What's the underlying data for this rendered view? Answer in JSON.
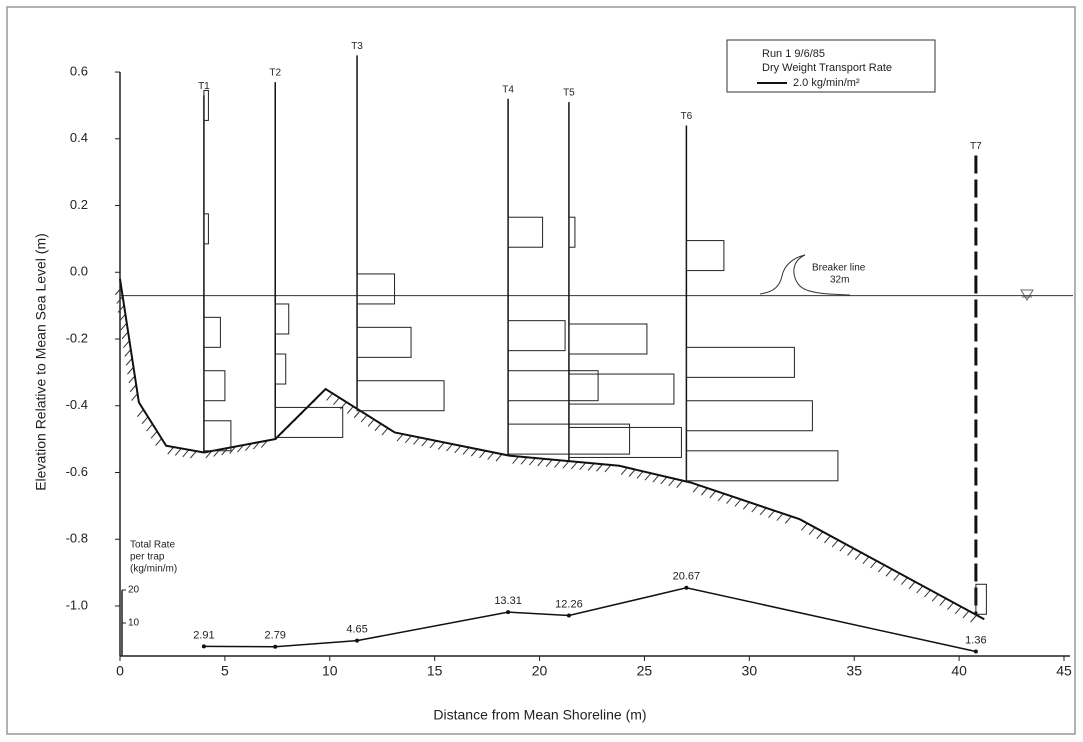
{
  "chart_data": {
    "type": "profile",
    "xlabel": "Distance from Mean Shoreline  (m)",
    "ylabel": "Elevation Relative to Mean Sea Level  (m)",
    "xlim": [
      0,
      45
    ],
    "xticks": [
      0,
      5,
      10,
      15,
      20,
      25,
      30,
      35,
      40,
      45
    ],
    "ylim": [
      -1.15,
      0.75
    ],
    "yticks": [
      0.6,
      0.4,
      0.2,
      {
        "value": 0,
        "label": "0.0"
      },
      -0.2,
      -0.4,
      -0.6,
      -0.8,
      {
        "value": -1,
        "label": "-1.0"
      }
    ],
    "legend": {
      "title": "Run 1  9/6/85",
      "subtitle": "Dry Weight Transport Rate",
      "label": "2.0 kg/min/m²",
      "value": 2.0
    },
    "sea_level": -0.07,
    "breaker": {
      "label": "Breaker line",
      "distance_label": "32m"
    },
    "profile": {
      "x": [
        0,
        0.9,
        2.2,
        4.0,
        7.4,
        9.8,
        13.1,
        18.6,
        23.8,
        27.2,
        32.4,
        41.2
      ],
      "y": [
        -0.02,
        -0.39,
        -0.52,
        -0.54,
        -0.5,
        -0.35,
        -0.48,
        -0.55,
        -0.58,
        -0.63,
        -0.74,
        -1.04
      ]
    },
    "traps": [
      {
        "name": "T1",
        "x": 4.0,
        "top": 0.53,
        "elevations": [
          0.5,
          0.13,
          -0.18,
          -0.34,
          -0.49
        ],
        "rates": [
          0.3,
          0.3,
          1.1,
          1.4,
          1.8
        ]
      },
      {
        "name": "T2",
        "x": 7.4,
        "top": 0.57,
        "elevations": [
          -0.14,
          -0.29,
          -0.45
        ],
        "rates": [
          0.9,
          0.7,
          4.5
        ]
      },
      {
        "name": "T3",
        "x": 11.3,
        "top": 0.65,
        "elevations": [
          -0.05,
          -0.21,
          -0.37
        ],
        "rates": [
          2.5,
          3.6,
          5.8
        ]
      },
      {
        "name": "T4",
        "x": 18.5,
        "top": 0.52,
        "elevations": [
          0.12,
          -0.19,
          -0.34,
          -0.5
        ],
        "rates": [
          2.3,
          3.8,
          6.0,
          8.1
        ]
      },
      {
        "name": "T5",
        "x": 21.4,
        "top": 0.51,
        "elevations": [
          0.12,
          -0.2,
          -0.35,
          -0.51
        ],
        "rates": [
          0.4,
          5.2,
          7.0,
          7.5
        ]
      },
      {
        "name": "T6",
        "x": 27.0,
        "top": 0.44,
        "elevations": [
          0.05,
          -0.27,
          -0.43,
          -0.58
        ],
        "rates": [
          2.5,
          7.2,
          8.4,
          10.1
        ]
      },
      {
        "name": "T7",
        "x": 40.8,
        "top": 0.35,
        "elevations": [
          -0.98
        ],
        "rates": [
          0.7
        ]
      }
    ],
    "total_rate": {
      "label": [
        "Total Rate",
        "per trap",
        "(kg/min/m)"
      ],
      "ylim": [
        0,
        20
      ],
      "yticks": [
        10,
        20
      ],
      "x": [
        4.0,
        7.4,
        11.3,
        18.5,
        21.4,
        27.0,
        40.8
      ],
      "values": [
        2.91,
        2.79,
        4.65,
        13.31,
        12.26,
        20.67,
        1.36
      ]
    }
  }
}
